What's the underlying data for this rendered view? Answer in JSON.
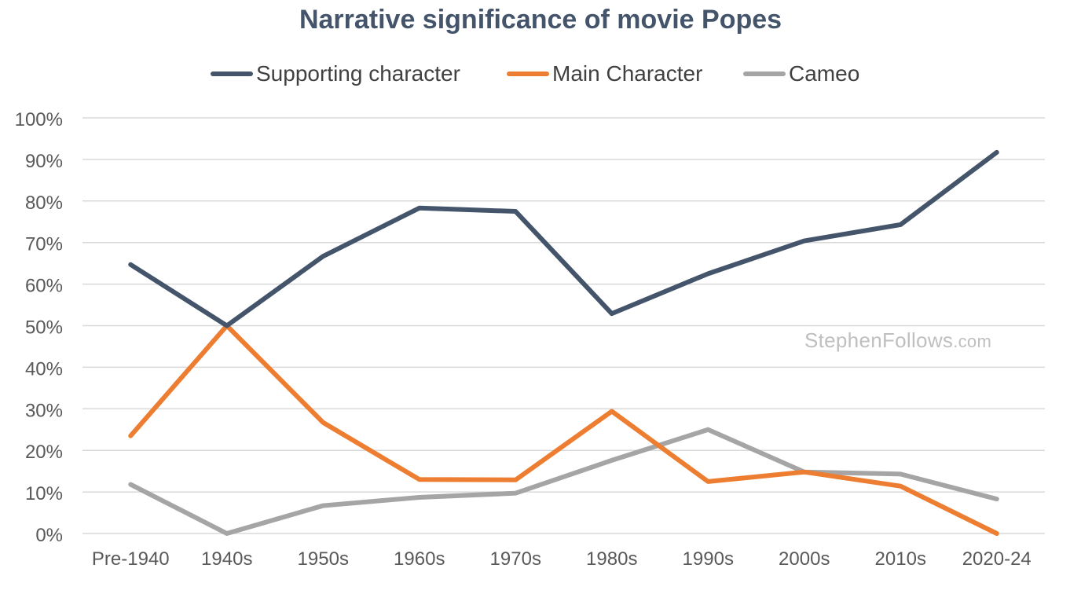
{
  "chart_data": {
    "type": "line",
    "title": "Narrative significance of movie Popes",
    "categories": [
      "Pre-1940",
      "1940s",
      "1950s",
      "1960s",
      "1970s",
      "1980s",
      "1990s",
      "2000s",
      "2010s",
      "2020-24"
    ],
    "series": [
      {
        "name": "Supporting character",
        "color": "#44546a",
        "values": [
          64.7,
          50.0,
          66.7,
          78.3,
          77.5,
          52.9,
          62.5,
          70.4,
          74.3,
          91.7
        ]
      },
      {
        "name": "Main Character",
        "color": "#ed7d31",
        "values": [
          23.5,
          50.0,
          26.7,
          13.0,
          12.9,
          29.4,
          12.5,
          14.8,
          11.4,
          0.0
        ]
      },
      {
        "name": "Cameo",
        "color": "#a5a5a5",
        "values": [
          11.8,
          0.0,
          6.7,
          8.7,
          9.7,
          17.6,
          25.0,
          14.8,
          14.3,
          8.3
        ]
      }
    ],
    "ylim": [
      0,
      100
    ],
    "y_ticks": [
      "0%",
      "10%",
      "20%",
      "30%",
      "40%",
      "50%",
      "60%",
      "70%",
      "80%",
      "90%",
      "100%"
    ],
    "xlabel": "",
    "ylabel": "",
    "grid": true,
    "legend_position": "top"
  },
  "watermark": {
    "main": "StephenFollows",
    "suffix": ".com"
  }
}
